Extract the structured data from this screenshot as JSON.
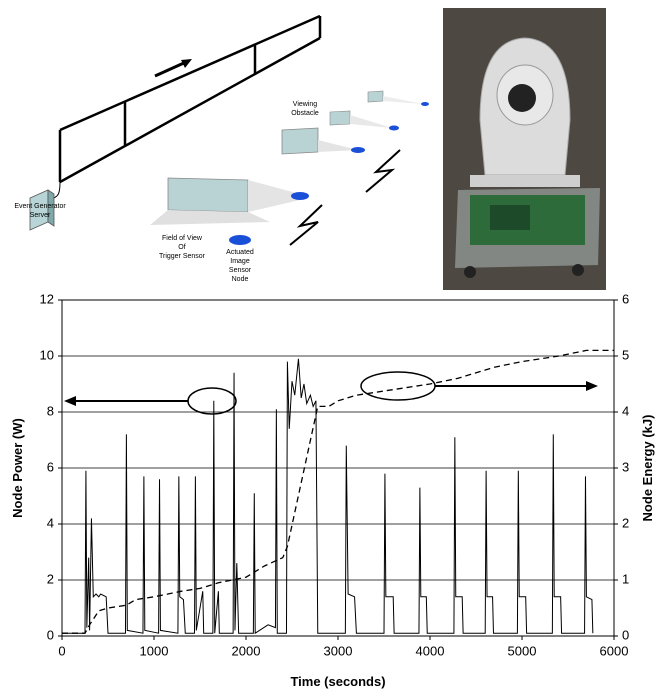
{
  "diagram": {
    "labels": [
      {
        "lines": [
          "Event Generator",
          "Server"
        ]
      },
      {
        "lines": [
          "Field of View",
          "Of",
          "Trigger Sensor"
        ]
      },
      {
        "lines": [
          "Actuated",
          "Image",
          "Sensor",
          "Node"
        ]
      },
      {
        "lines": [
          "Viewing",
          "Obstacle"
        ]
      }
    ]
  },
  "chart_data": {
    "type": "line",
    "x_label": "Time (seconds)",
    "y_label": "Node Power (W)",
    "y2_label": "Node Energy (kJ)",
    "xlim": [
      0,
      6000
    ],
    "xticks": [
      0,
      1000,
      2000,
      3000,
      4000,
      5000,
      6000
    ],
    "ylim": [
      0,
      12
    ],
    "yticks": [
      0,
      2,
      4,
      6,
      8,
      10,
      12
    ],
    "y2lim": [
      0,
      6
    ],
    "y2ticks": [
      0,
      1,
      2,
      3,
      4,
      5,
      6
    ],
    "grid": true,
    "series": [
      {
        "style": "solid",
        "color": "#000000",
        "x": [
          0,
          250,
          260,
          270,
          290,
          300,
          320,
          340,
          370,
          400,
          420,
          480,
          500,
          690,
          700,
          710,
          880,
          890,
          900,
          1050,
          1060,
          1070,
          1260,
          1270,
          1280,
          1320,
          1340,
          1440,
          1450,
          1460,
          1530,
          1540,
          1640,
          1650,
          1660,
          1700,
          1710,
          1860,
          1870,
          1880,
          1900,
          1920,
          2080,
          2090,
          2100,
          2240,
          2320,
          2330,
          2340,
          2440,
          2450,
          2470,
          2500,
          2530,
          2570,
          2600,
          2630,
          2660,
          2700,
          2730,
          2760,
          2780,
          3080,
          3090,
          3110,
          3180,
          3200,
          3500,
          3510,
          3520,
          3600,
          3610,
          3880,
          3890,
          3900,
          3960,
          3970,
          4260,
          4270,
          4280,
          4350,
          4360,
          4600,
          4610,
          4620,
          4680,
          4690,
          4950,
          4960,
          4970,
          5040,
          5050,
          5330,
          5340,
          5350,
          5420,
          5430,
          5680,
          5690,
          5700,
          5760,
          5770
        ],
        "values": [
          0.1,
          0.1,
          5.9,
          0.3,
          2.8,
          0.2,
          4.2,
          1.4,
          1.5,
          1.4,
          1.5,
          1.4,
          0.1,
          0.1,
          7.2,
          0.2,
          0.1,
          5.7,
          0.2,
          0.1,
          5.6,
          0.2,
          0.1,
          5.7,
          1.4,
          1.3,
          0.1,
          0.1,
          5.7,
          0.2,
          1.6,
          0.1,
          0.1,
          8.4,
          0.1,
          1.6,
          0.1,
          0.1,
          9.4,
          0.2,
          2.6,
          0.1,
          0.1,
          5.1,
          0.1,
          0.4,
          0.3,
          8.1,
          0.1,
          0.1,
          9.8,
          7.4,
          9.1,
          8.6,
          9.9,
          8.5,
          9.0,
          8.3,
          8.6,
          8.2,
          8.4,
          0.1,
          0.1,
          6.8,
          1.5,
          1.4,
          0.1,
          0.1,
          5.8,
          1.4,
          1.4,
          0.1,
          0.1,
          5.3,
          1.4,
          1.4,
          0.1,
          0.1,
          7.1,
          1.4,
          1.4,
          0.1,
          0.1,
          5.9,
          1.4,
          1.4,
          0.1,
          0.1,
          5.9,
          1.4,
          1.4,
          0.1,
          0.1,
          7.2,
          1.4,
          1.4,
          0.1,
          0.1,
          5.7,
          1.4,
          1.3,
          0.1
        ]
      },
      {
        "style": "dashed",
        "color": "#000000",
        "axis": "y2",
        "x": [
          0,
          250,
          300,
          400,
          500,
          700,
          800,
          1000,
          1300,
          1500,
          1700,
          2000,
          2200,
          2400,
          2450,
          2780,
          2900,
          3000,
          3200,
          3600,
          4000,
          4300,
          4700,
          5000,
          5400,
          5700,
          6000
        ],
        "values": [
          0.05,
          0.05,
          0.2,
          0.45,
          0.5,
          0.55,
          0.65,
          0.7,
          0.8,
          0.85,
          0.95,
          1.05,
          1.25,
          1.4,
          1.6,
          4.1,
          4.1,
          4.2,
          4.3,
          4.4,
          4.5,
          4.6,
          4.8,
          4.9,
          5.0,
          5.1,
          5.1
        ]
      }
    ]
  }
}
